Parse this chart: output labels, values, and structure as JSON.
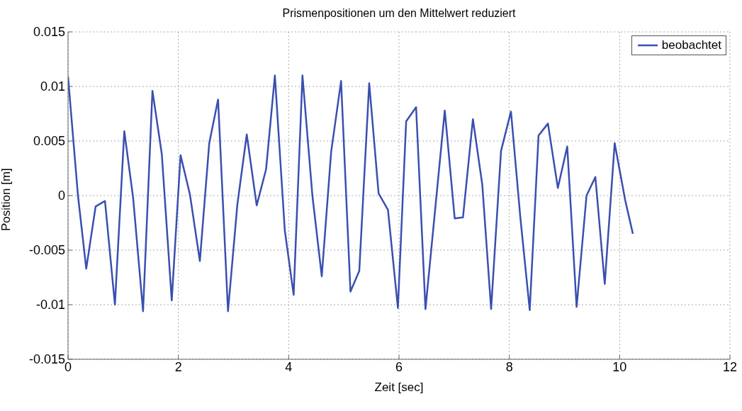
{
  "chart_data": {
    "type": "line",
    "title": "Prismenpositionen um den Mittelwert reduziert",
    "xlabel": "Zeit [sec]",
    "ylabel": "Position [m]",
    "xlim": [
      0,
      12
    ],
    "xticks": [
      0,
      2,
      4,
      6,
      8,
      10,
      12
    ],
    "ylim": [
      -0.015,
      0.015
    ],
    "yticks": [
      -0.015,
      -0.01,
      -0.005,
      0,
      0.005,
      0.01,
      0.015
    ],
    "grid": true,
    "legend": "top right",
    "line_style": "solid",
    "marker": "none",
    "series": [
      {
        "name": "beobachtet",
        "color": "#3a4fb0",
        "x": [
          0,
          0.18,
          0.33,
          0.5,
          0.67,
          0.85,
          1.02,
          1.18,
          1.36,
          1.53,
          1.7,
          1.88,
          2.04,
          2.21,
          2.39,
          2.56,
          2.72,
          2.9,
          3.07,
          3.24,
          3.42,
          3.59,
          3.75,
          3.93,
          4.09,
          4.25,
          4.43,
          4.6,
          4.77,
          4.95,
          5.12,
          5.28,
          5.46,
          5.63,
          5.8,
          5.98,
          6.13,
          6.31,
          6.48,
          6.83,
          7.01,
          7.16,
          7.34,
          7.51,
          7.67,
          7.85,
          8.03,
          8.2,
          8.37,
          8.53,
          8.7,
          8.88,
          9.05,
          9.22,
          9.4,
          9.56,
          9.73,
          9.91,
          10.1,
          10.24
        ],
        "values": [
          0.0109,
          0,
          -0.0067,
          -0.001,
          -0.0005,
          -0.01,
          0.0059,
          -0.0002,
          -0.0106,
          0.0096,
          0.0038,
          -0.0096,
          0.0037,
          0.0001,
          -0.006,
          0.0048,
          0.0088,
          -0.0106,
          -0.0008,
          0.0056,
          -0.0009,
          0.0024,
          0.011,
          -0.0032,
          -0.0091,
          0.011,
          0,
          -0.0074,
          0.004,
          0.0105,
          -0.0088,
          -0.0069,
          0.0103,
          0.0002,
          -0.0013,
          -0.0103,
          0.0068,
          0.0081,
          -0.0104,
          0.0078,
          -0.0021,
          -0.002,
          0.007,
          0.001,
          -0.0104,
          0.0041,
          0.0077,
          -0.002,
          -0.0105,
          0.0055,
          0.0066,
          0.0007,
          0.0045,
          -0.0102,
          0,
          0.0017,
          -0.0081,
          0.0048,
          -0.0004,
          -0.0035
        ]
      }
    ]
  }
}
